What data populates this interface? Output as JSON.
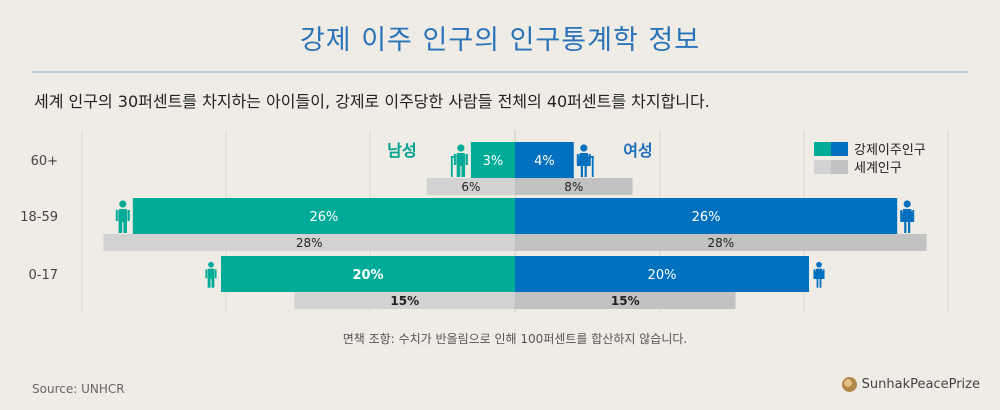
{
  "title": "강제 이주 인구의 인구통계학 정보",
  "subtitle": "세계 인구의 30퍼센트를 차지하는 아이들이, 강제로 이주당한 사람들 전체의 40퍼센트를 차지합니다.",
  "footnote": "면책 조항: 수치가 반올림으로 인해 100퍼센트를 합산하지 않습니다.",
  "source": "Source: UNHCR",
  "brand": "SunhakPeacePrize",
  "colors": {
    "male": "#00ab98",
    "female": "#0070bf",
    "world_left": "#d2d2d2",
    "world_right": "#c2c2c2",
    "gender_male_text": "#00a08e",
    "gender_female_text": "#1e6fbd"
  },
  "chart_data": {
    "type": "bar",
    "layout": "population-pyramid",
    "gender_labels": {
      "male": "남성",
      "female": "여성"
    },
    "categories": [
      "60+",
      "18-59",
      "0-17"
    ],
    "series": [
      {
        "name": "강제이주인구",
        "side": "male",
        "values": [
          3,
          26,
          20
        ],
        "labels": [
          "3%",
          "26%",
          "20%"
        ]
      },
      {
        "name": "강제이주인구",
        "side": "female",
        "values": [
          4,
          26,
          20
        ],
        "labels": [
          "4%",
          "26%",
          "20%"
        ]
      },
      {
        "name": "세계인구",
        "side": "male",
        "values": [
          6,
          28,
          15
        ],
        "labels": [
          "6%",
          "28%",
          "15%"
        ]
      },
      {
        "name": "세계인구",
        "side": "female",
        "values": [
          8,
          28,
          15
        ],
        "labels": [
          "8%",
          "28%",
          "15%"
        ]
      }
    ],
    "legend": [
      {
        "label": "강제이주인구",
        "colors": [
          "#00ab98",
          "#0070bf"
        ]
      },
      {
        "label": "세계인구",
        "colors": [
          "#d2d2d2",
          "#c2c2c2"
        ]
      }
    ],
    "legend_position": "top-right",
    "bold_labels": [
      "20%",
      "15%"
    ],
    "xlim": [
      -28,
      28
    ],
    "grid": true
  }
}
